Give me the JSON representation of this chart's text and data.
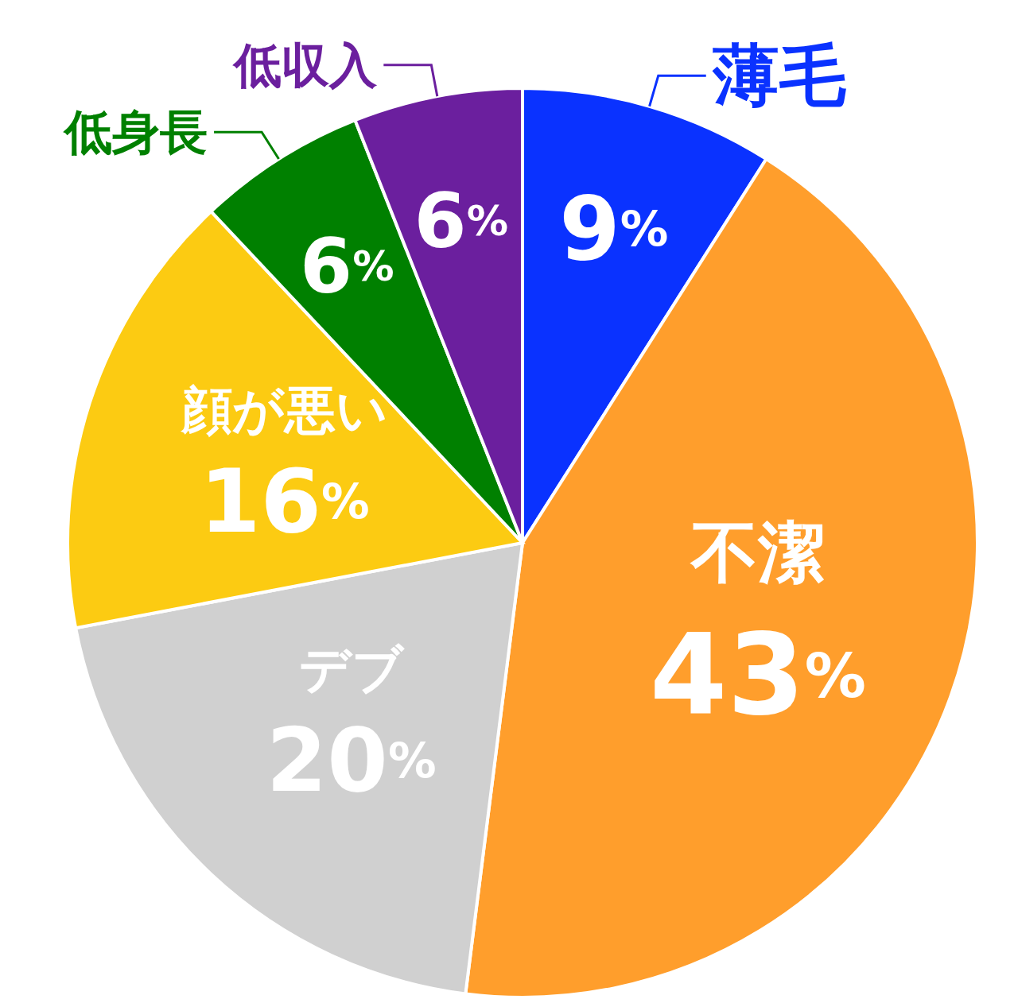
{
  "chart_data": {
    "type": "pie",
    "categories": [
      "薄毛",
      "不潔",
      "デブ",
      "顔が悪い",
      "低身長",
      "低収入"
    ],
    "values": [
      9,
      43,
      20,
      16,
      6,
      6
    ],
    "colors": [
      "#0a32ff",
      "#ff9e2c",
      "#d0d0d0",
      "#fccb12",
      "#008000",
      "#6b1f9e"
    ],
    "value_labels": [
      "9%",
      "43%",
      "20%",
      "16%",
      "6%",
      "6%"
    ]
  }
}
